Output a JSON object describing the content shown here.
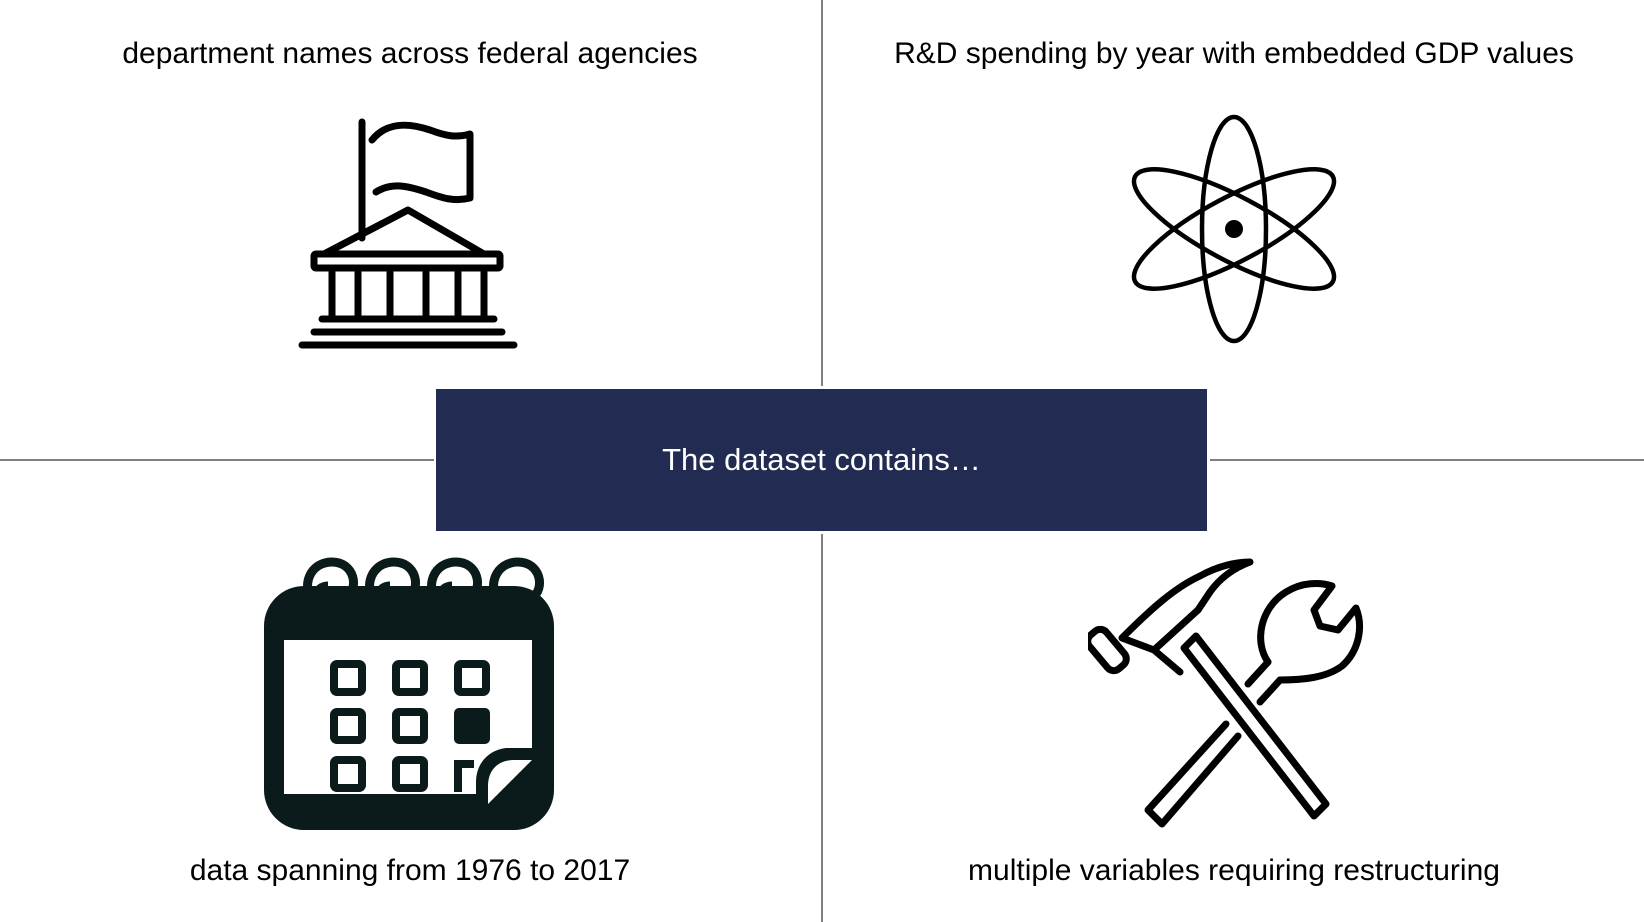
{
  "center": {
    "label": "The dataset contains…"
  },
  "quadrants": {
    "top_left": {
      "caption": "department names across federal agencies",
      "icon": "government-building-icon"
    },
    "top_right": {
      "caption": "R&D spending by year with embedded GDP values",
      "icon": "atom-icon"
    },
    "bottom_left": {
      "caption": "data spanning from 1976 to 2017",
      "icon": "calendar-icon"
    },
    "bottom_right": {
      "caption": "multiple variables requiring restructuring",
      "icon": "hammer-wrench-icon"
    }
  },
  "colors": {
    "center_box": "#222c52",
    "center_text": "#ffffff",
    "divider": "#7f7f7f",
    "icon": "#000000",
    "calendar": "#0b1a1a"
  }
}
